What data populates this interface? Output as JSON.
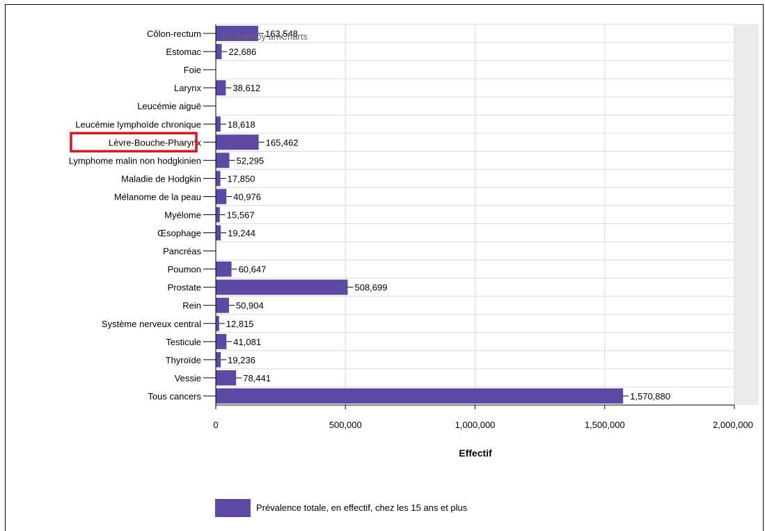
{
  "watermark": "JS chart by amCharts",
  "highlight_category": "Lèvre-Bouche-Pharynx",
  "colors": {
    "bar": "#5d48a4",
    "grid": "#d9d9d9",
    "axis": "#000000",
    "plot_bg_tail": "#ececec",
    "highlight": "#e0141e"
  },
  "chart_data": {
    "type": "bar",
    "orientation": "horizontal",
    "categories": [
      "Côlon-rectum",
      "Estomac",
      "Foie",
      "Larynx",
      "Leucémie aiguë",
      "Leucémie lymphoïde chronique",
      "Lèvre-Bouche-Pharynx",
      "Lymphome malin non hodgkinien",
      "Maladie de Hodgkin",
      "Mélanome de la peau",
      "Myélome",
      "Œsophage",
      "Pancréas",
      "Poumon",
      "Prostate",
      "Rein",
      "Système nerveux central",
      "Testicule",
      "Thyroïde",
      "Vessie",
      "Tous cancers"
    ],
    "values": [
      163548,
      22686,
      null,
      38612,
      null,
      18618,
      165462,
      52295,
      17850,
      40976,
      15567,
      19244,
      null,
      60647,
      508699,
      50904,
      12815,
      41081,
      19236,
      78441,
      1570880
    ],
    "value_labels": [
      "163,548",
      "22,686",
      "",
      "38,612",
      "",
      "18,618",
      "165,462",
      "52,295",
      "17,850",
      "40,976",
      "15,567",
      "19,244",
      "",
      "60,647",
      "508,699",
      "50,904",
      "12,815",
      "41,081",
      "19,236",
      "78,441",
      "1,570,880"
    ],
    "xlim": [
      0,
      2000000
    ],
    "x_ticks": [
      0,
      500000,
      1000000,
      1500000,
      2000000
    ],
    "x_tick_labels": [
      "0",
      "500,000",
      "1,000,000",
      "1,500,000",
      "2,000,000"
    ],
    "xlabel": "Effectif",
    "ylabel": "",
    "grid": true,
    "legend_position": "bottom-left",
    "series": [
      {
        "name": "Prévalence totale, en effectif, chez les 15 ans et plus"
      }
    ]
  }
}
